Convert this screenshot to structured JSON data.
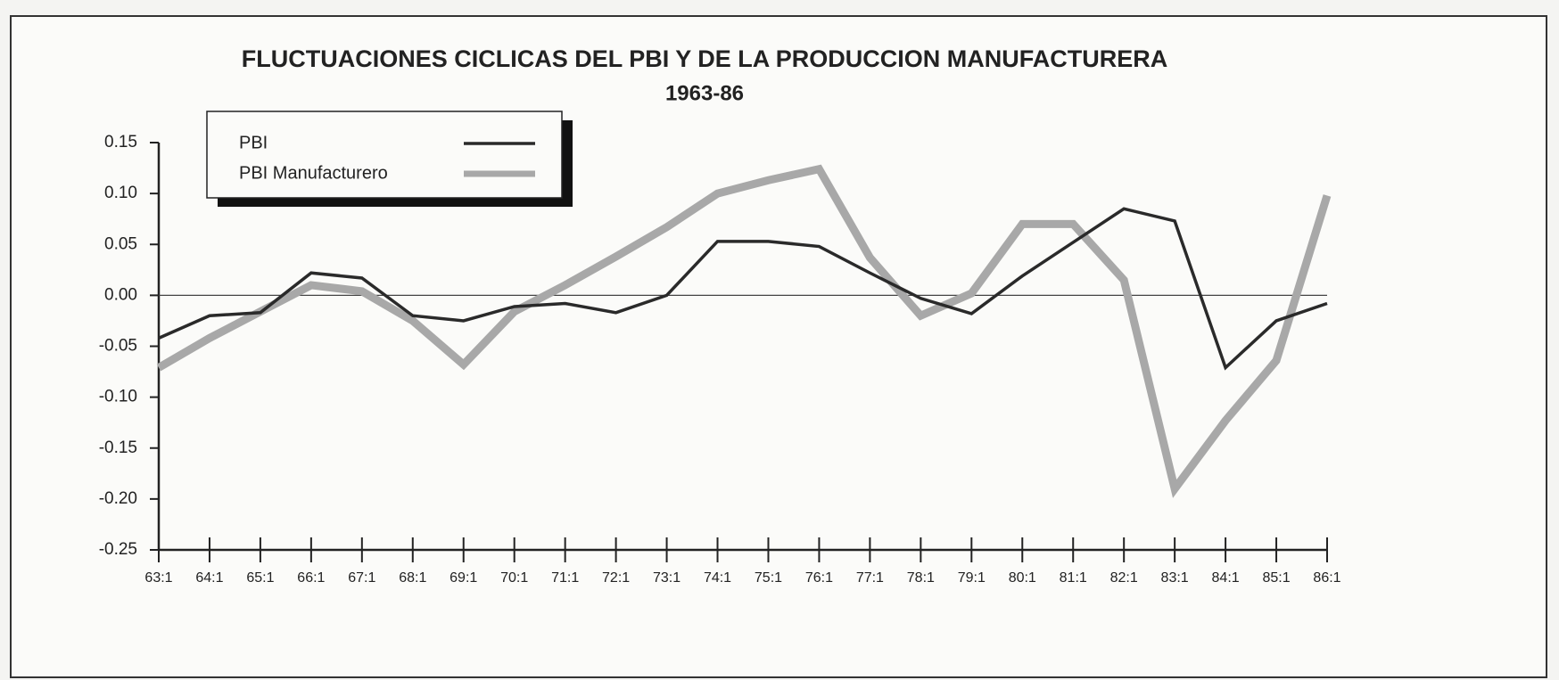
{
  "chart_data": {
    "type": "line",
    "title": "FLUCTUACIONES CICLICAS DEL PBI Y DE LA PRODUCCION MANUFACTURERA",
    "subtitle": "1963-86",
    "categories": [
      "63:1",
      "64:1",
      "65:1",
      "66:1",
      "67:1",
      "68:1",
      "69:1",
      "70:1",
      "71:1",
      "72:1",
      "73:1",
      "74:1",
      "75:1",
      "76:1",
      "77:1",
      "78:1",
      "79:1",
      "80:1",
      "81:1",
      "82:1",
      "83:1",
      "84:1",
      "85:1",
      "86:1"
    ],
    "series": [
      {
        "name": "PBI",
        "color": "#2a2a2a",
        "values": [
          -0.042,
          -0.02,
          -0.017,
          0.022,
          0.017,
          -0.02,
          -0.025,
          -0.011,
          -0.008,
          -0.017,
          0.0,
          0.053,
          0.053,
          0.048,
          0.022,
          -0.003,
          -0.018,
          0.019,
          0.052,
          0.085,
          0.073,
          -0.071,
          -0.025,
          -0.008
        ]
      },
      {
        "name": "PBI Manufacturero",
        "color": "#a8a8a8",
        "values": [
          -0.071,
          -0.042,
          -0.016,
          0.01,
          0.004,
          -0.025,
          -0.068,
          -0.016,
          0.01,
          0.038,
          0.067,
          0.1,
          0.113,
          0.124,
          0.037,
          -0.02,
          0.002,
          0.07,
          0.07,
          0.015,
          -0.19,
          -0.123,
          -0.064,
          0.098
        ]
      }
    ],
    "ylim": [
      -0.25,
      0.15
    ],
    "yticks": [
      0.15,
      {
        "value": 0.1,
        "label": "0.10"
      },
      0.05,
      {
        "value": 0,
        "label": "0.00"
      },
      -0.05,
      {
        "value": -0.1,
        "label": "-0.10"
      },
      -0.15,
      {
        "value": -0.2,
        "label": "-0.20"
      },
      -0.25
    ],
    "legend": "upper left"
  }
}
